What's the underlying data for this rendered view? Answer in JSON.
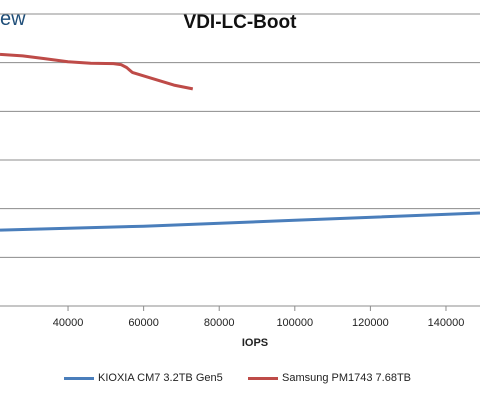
{
  "header": {
    "logo_text": "ew"
  },
  "chart_data": {
    "type": "line",
    "title": "VDI-LC-Boot",
    "xlabel": "IOPS",
    "ylabel": "",
    "x_ticks": [
      40000,
      60000,
      80000,
      100000,
      120000,
      140000
    ],
    "xlim": [
      22000,
      149000
    ],
    "ylim": [
      0,
      6
    ],
    "grid": true,
    "legend_position": "bottom",
    "series": [
      {
        "name": "KIOXIA CM7 3.2TB Gen5",
        "color": "#4a7ebb",
        "x": [
          22000,
          60000,
          100000,
          149000
        ],
        "y": [
          1.56,
          1.64,
          1.76,
          1.91
        ]
      },
      {
        "name": "Samsung PM1743 7.68TB",
        "color": "#be4b48",
        "x": [
          22000,
          28000,
          34000,
          40000,
          46000,
          52000,
          54000,
          55500,
          57000,
          62000,
          68000,
          73000
        ],
        "y": [
          5.17,
          5.14,
          5.08,
          5.02,
          4.99,
          4.98,
          4.96,
          4.9,
          4.8,
          4.68,
          4.54,
          4.46
        ]
      }
    ]
  }
}
